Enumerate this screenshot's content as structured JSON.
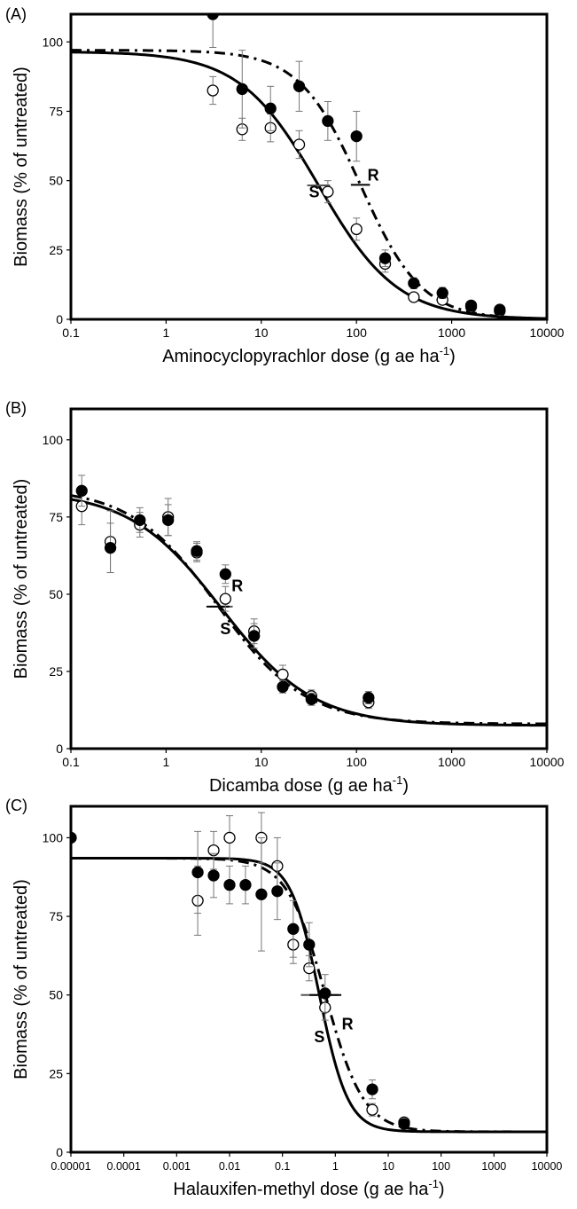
{
  "chart_data": [
    {
      "type": "scatter",
      "panel_label": "(A)",
      "title": "",
      "xlabel": "Aminocyclopyrachlor dose (g ae ha",
      "xlabel_sup": "-1",
      "xlabel_close": ")",
      "ylabel": "Biomass (% of untreated)",
      "xscale": "log",
      "xlim": [
        0.1,
        10000
      ],
      "ylim": [
        0,
        110
      ],
      "xticks": [
        0.1,
        1,
        10,
        100,
        1000,
        10000
      ],
      "xtick_labels": [
        "0.1",
        "1",
        "10",
        "100",
        "1000",
        "10000"
      ],
      "yticks": [
        0,
        25,
        50,
        75,
        100
      ],
      "ytick_labels": [
        "0",
        "25",
        "50",
        "75",
        "100"
      ],
      "series": [
        {
          "name": "S",
          "marker": "open-circle",
          "line": "solid",
          "x": [
            3.1,
            6.3,
            12.5,
            25,
            50,
            100,
            200,
            400,
            800,
            1600,
            3200
          ],
          "y": [
            82.5,
            68.5,
            69,
            63,
            46,
            32.5,
            20,
            8,
            7,
            4.5,
            3
          ],
          "err": [
            5,
            4,
            5,
            5,
            4,
            4,
            3,
            1.5,
            1.5,
            1,
            1
          ]
        },
        {
          "name": "R",
          "marker": "filled-circle",
          "line": "dash-dot",
          "x": [
            3.1,
            6.3,
            12.5,
            25,
            50,
            100,
            200,
            400,
            800,
            1600,
            3200
          ],
          "y": [
            110,
            83,
            76,
            84,
            71.5,
            66,
            22,
            13,
            9.5,
            5,
            3.5
          ],
          "err": [
            12,
            14,
            8,
            9,
            7,
            9,
            3,
            2,
            2,
            1,
            1
          ]
        }
      ],
      "fits": [
        {
          "name": "S",
          "line": "solid",
          "top": 96.5,
          "bottom": 0,
          "ed50": 40,
          "hill": 1.05,
          "ed50_y": 48.3,
          "ed50_halfwidth": 0.12
        },
        {
          "name": "R",
          "line": "dash-dot",
          "top": 97,
          "bottom": 0,
          "ed50": 110,
          "hill": 1.35,
          "ed50_y": 48.5,
          "ed50_halfwidth": 0.1
        }
      ],
      "curve_labels": [
        {
          "text": "S",
          "x": 36,
          "y": 44
        },
        {
          "text": "R",
          "x": 150,
          "y": 50
        }
      ]
    },
    {
      "type": "scatter",
      "panel_label": "(B)",
      "title": "",
      "xlabel": "Dicamba dose (g ae ha",
      "xlabel_sup": "-1",
      "xlabel_close": ")",
      "ylabel": "Biomass (% of untreated)",
      "xscale": "log",
      "xlim": [
        0.1,
        10000
      ],
      "ylim": [
        0,
        110
      ],
      "xticks": [
        0.1,
        1,
        10,
        100,
        1000,
        10000
      ],
      "xtick_labels": [
        "0.1",
        "1",
        "10",
        "100",
        "1000",
        "10000"
      ],
      "yticks": [
        0,
        25,
        50,
        75,
        100
      ],
      "ytick_labels": [
        "0",
        "25",
        "50",
        "75",
        "100"
      ],
      "series": [
        {
          "name": "S",
          "marker": "open-circle",
          "line": "solid",
          "x": [
            0.13,
            0.26,
            0.53,
            1.05,
            2.1,
            4.2,
            8.4,
            16.8,
            33.6,
            134
          ],
          "y": [
            78.5,
            67,
            72.5,
            75,
            63.5,
            48.5,
            38,
            24,
            17,
            15
          ],
          "err": [
            6,
            10,
            4,
            6,
            3,
            4,
            4,
            3,
            2,
            2
          ]
        },
        {
          "name": "R",
          "marker": "filled-circle",
          "line": "dash-dot",
          "x": [
            0.13,
            0.26,
            0.53,
            1.05,
            2.1,
            4.2,
            8.4,
            16.8,
            33.6,
            134
          ],
          "y": [
            83.5,
            65,
            74,
            74,
            64,
            56.5,
            36.5,
            20,
            16,
            16.5
          ],
          "err": [
            5,
            8,
            4,
            5,
            3,
            3,
            4,
            2,
            2,
            2
          ]
        }
      ],
      "fits": [
        {
          "name": "S",
          "line": "solid",
          "top": 83.5,
          "bottom": 7.5,
          "ed50": 3.8,
          "hill": 0.9,
          "ed50_y": 46,
          "ed50_halfwidth": 0.12
        },
        {
          "name": "R",
          "line": "dash-dot",
          "top": 84.5,
          "bottom": 8,
          "ed50": 3.5,
          "hill": 0.95,
          "ed50_y": 46,
          "ed50_halfwidth": 0.12
        }
      ],
      "curve_labels": [
        {
          "text": "R",
          "x": 5.6,
          "y": 51
        },
        {
          "text": "S",
          "x": 4.2,
          "y": 37
        }
      ]
    },
    {
      "type": "scatter",
      "panel_label": "(C)",
      "title": "",
      "xlabel": "Halauxifen-methyl dose (g ae ha",
      "xlabel_sup": "-1",
      "xlabel_close": ")",
      "ylabel": "Biomass (% of untreated)",
      "xscale": "log",
      "xlim": [
        1e-05,
        10000
      ],
      "ylim": [
        0,
        110
      ],
      "xticks": [
        1e-05,
        0.0001,
        0.001,
        0.01,
        0.1,
        1,
        10,
        100,
        1000,
        10000
      ],
      "xtick_labels": [
        "0.00001",
        "0.0001",
        "0.001",
        "0.01",
        "0.1",
        "1",
        "10",
        "100",
        "1000",
        "10000"
      ],
      "yticks": [
        0,
        25,
        50,
        75,
        100
      ],
      "ytick_labels": [
        "0",
        "25",
        "50",
        "75",
        "100"
      ],
      "series": [
        {
          "name": "S",
          "marker": "open-circle",
          "line": "solid",
          "x": [
            0.0025,
            0.005,
            0.01,
            0.04,
            0.08,
            0.16,
            0.32,
            0.64,
            5,
            20
          ],
          "y": [
            80,
            96,
            100,
            100,
            91,
            66,
            58.5,
            46,
            13.5,
            9.5
          ],
          "err": [
            11,
            6,
            7,
            8,
            9,
            6,
            4,
            4,
            2,
            1
          ]
        },
        {
          "name": "R",
          "marker": "filled-circle",
          "line": "dash-dot",
          "x": [
            1e-05,
            0.0025,
            0.005,
            0.01,
            0.02,
            0.04,
            0.08,
            0.16,
            0.32,
            0.64,
            5,
            20
          ],
          "y": [
            100,
            89,
            88,
            85,
            85,
            82,
            83,
            71,
            66,
            50.5,
            20,
            9
          ],
          "err": [
            0,
            13,
            7,
            6,
            6,
            18,
            9,
            9,
            7,
            6,
            3,
            1
          ]
        }
      ],
      "fits": [
        {
          "name": "S",
          "line": "solid",
          "top": 93.5,
          "bottom": 6.5,
          "ed50": 0.5,
          "hill": 1.6,
          "ed50_y": 50,
          "ed50_halfwidth": 0.35
        },
        {
          "name": "R",
          "line": "dash-dot",
          "top": 93.5,
          "bottom": 6.5,
          "ed50": 0.65,
          "hill": 1.2,
          "ed50_y": 50,
          "ed50_halfwidth": 0.3
        }
      ],
      "curve_labels": [
        {
          "text": "S",
          "x": 0.5,
          "y": 35
        },
        {
          "text": "R",
          "x": 1.7,
          "y": 39
        }
      ]
    }
  ]
}
